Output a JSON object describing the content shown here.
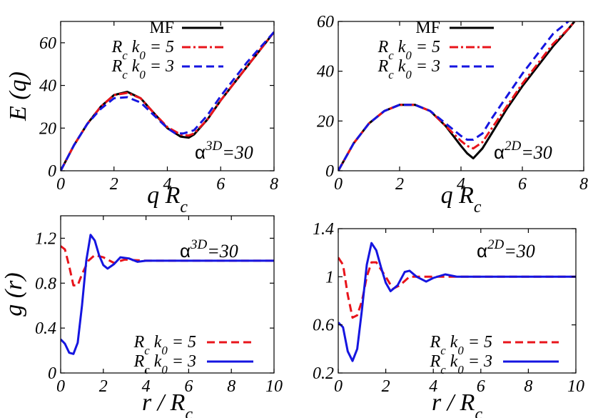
{
  "chart_data": [
    {
      "id": "p1",
      "type": "line",
      "panel": {
        "x0": 85,
        "y0": 30,
        "w": 299,
        "h": 209
      },
      "xlim": [
        0,
        8
      ],
      "ylim": [
        0,
        70
      ],
      "xticks": [
        0,
        2,
        4,
        6,
        8
      ],
      "yticks": [
        0,
        20,
        40,
        60
      ],
      "xlabel": "q R",
      "xlabel_sub": "c",
      "ylabel": "E (q)",
      "annotation": {
        "base": "α",
        "sup": "3D",
        "rest": "=30"
      },
      "legend_position": "top-center",
      "series": [
        {
          "name": "MF",
          "color": "#000000",
          "dash": "",
          "x": [
            0,
            0.5,
            1,
            1.5,
            2,
            2.5,
            3,
            3.5,
            4,
            4.5,
            4.8,
            5,
            5.5,
            6,
            6.5,
            7,
            7.5,
            8
          ],
          "y": [
            0,
            12,
            22,
            30,
            35.5,
            37,
            34,
            27,
            20,
            16,
            15.5,
            17,
            24,
            33,
            41,
            49,
            57,
            65
          ]
        },
        {
          "name": "R",
          "name_sub": "c",
          "name_rest": " k",
          "name_sub2": "0",
          "name_tail": " = 5",
          "color": "#e8141b",
          "dash": "12 4 3 4",
          "x": [
            0,
            0.5,
            1,
            1.5,
            2,
            2.5,
            3,
            3.5,
            4,
            4.5,
            4.8,
            5,
            5.5,
            6,
            6.5,
            7,
            7.5,
            8
          ],
          "y": [
            0,
            12,
            22,
            30,
            35.5,
            36.5,
            34,
            27,
            20.5,
            17,
            16.5,
            17.5,
            24,
            33,
            41,
            49,
            57,
            65
          ]
        },
        {
          "name": "R",
          "name_sub": "c",
          "name_rest": " k",
          "name_sub2": "0",
          "name_tail": " = 3",
          "color": "#1515e0",
          "dash": "11 6",
          "x": [
            0,
            0.5,
            1,
            1.5,
            2,
            2.5,
            3,
            3.5,
            4,
            4.3,
            4.6,
            5,
            5.5,
            6,
            6.5,
            7,
            7.5,
            8
          ],
          "y": [
            0,
            12,
            22,
            29,
            34,
            34.5,
            32,
            26,
            20,
            17.5,
            17.5,
            19,
            26,
            35,
            43,
            51,
            58,
            65
          ]
        }
      ]
    },
    {
      "id": "p2",
      "type": "line",
      "panel": {
        "x0": 474,
        "y0": 30,
        "w": 344,
        "h": 209
      },
      "xlim": [
        0,
        8
      ],
      "ylim": [
        0,
        60
      ],
      "xticks": [
        0,
        2,
        4,
        6,
        8
      ],
      "yticks": [
        0,
        20,
        40,
        60
      ],
      "xlabel": "q R",
      "xlabel_sub": "c",
      "ylabel": "",
      "annotation": {
        "base": "α",
        "sup": "2D",
        "rest": "=30"
      },
      "legend_position": "top-center",
      "series": [
        {
          "name": "MF",
          "color": "#000000",
          "dash": "",
          "x": [
            0,
            0.5,
            1,
            1.5,
            2,
            2.5,
            3,
            3.5,
            4,
            4.2,
            4.4,
            4.7,
            5,
            5.5,
            6,
            6.5,
            7,
            7.5,
            7.7
          ],
          "y": [
            0,
            11,
            19,
            24,
            26.5,
            26.5,
            24,
            18,
            10,
            7,
            5,
            9,
            15,
            25,
            34,
            42,
            50,
            57,
            60
          ]
        },
        {
          "name": "R",
          "name_sub": "c",
          "name_rest": " k",
          "name_sub2": "0",
          "name_tail": " = 5",
          "color": "#e8141b",
          "dash": "12 4 3 4",
          "x": [
            0,
            0.5,
            1,
            1.5,
            2,
            2.5,
            3,
            3.5,
            4,
            4.2,
            4.4,
            4.7,
            5,
            5.5,
            6,
            6.5,
            7,
            7.5,
            7.7
          ],
          "y": [
            0,
            11,
            19,
            24,
            26.5,
            26.5,
            24,
            18,
            12,
            10,
            9,
            11.5,
            17,
            26,
            35,
            43,
            51,
            57,
            60
          ]
        },
        {
          "name": "R",
          "name_sub": "c",
          "name_rest": " k",
          "name_sub2": "0",
          "name_tail": " = 3",
          "color": "#1515e0",
          "dash": "11 6",
          "x": [
            0,
            0.5,
            1,
            1.5,
            2,
            2.5,
            3,
            3.5,
            4,
            4.2,
            4.4,
            4.7,
            5,
            5.5,
            6,
            6.5,
            7,
            7.5
          ],
          "y": [
            0,
            11,
            19,
            24,
            26.5,
            26.5,
            24,
            19,
            14,
            12.5,
            12.5,
            15,
            21,
            30,
            39,
            47,
            55,
            60
          ]
        }
      ]
    },
    {
      "id": "p3",
      "type": "line",
      "panel": {
        "x0": 85,
        "y0": 302,
        "w": 299,
        "h": 220
      },
      "xlim": [
        0,
        10
      ],
      "ylim": [
        0,
        1.4
      ],
      "xticks": [
        0,
        2,
        4,
        6,
        8,
        10
      ],
      "yticks": [
        0,
        0.4,
        0.8,
        1.2
      ],
      "ytick_labels": [
        "0",
        "0.4",
        "0.8",
        "1.2"
      ],
      "xlabel": "r / R",
      "xlabel_sub": "c",
      "ylabel": "g (r)",
      "annotation": {
        "base": "α",
        "sup": "3D",
        "rest": "=30"
      },
      "legend_position": "bottom-right",
      "series": [
        {
          "name": "R",
          "name_sub": "c",
          "name_rest": " k",
          "name_sub2": "0",
          "name_tail": " = 5",
          "color": "#e8141b",
          "dash": "11 6",
          "x": [
            0,
            0.2,
            0.4,
            0.6,
            0.8,
            1,
            1.3,
            1.6,
            2,
            2.5,
            3,
            4,
            5,
            6,
            7,
            8,
            9,
            10
          ],
          "y": [
            1.13,
            1.1,
            0.95,
            0.78,
            0.78,
            0.88,
            1.0,
            1.05,
            1.03,
            0.98,
            1.01,
            1.0,
            1.0,
            1.0,
            1.0,
            1.0,
            1.0,
            1.0
          ]
        },
        {
          "name": "R",
          "name_sub": "c",
          "name_rest": " k",
          "name_sub2": "0",
          "name_tail": " = 3",
          "color": "#1515e0",
          "dash": "",
          "x": [
            0,
            0.2,
            0.4,
            0.6,
            0.8,
            1,
            1.2,
            1.4,
            1.6,
            1.8,
            2,
            2.2,
            2.5,
            2.8,
            3.2,
            3.6,
            4,
            5,
            6,
            7,
            8,
            9,
            10
          ],
          "y": [
            0.3,
            0.26,
            0.18,
            0.17,
            0.27,
            0.6,
            1.0,
            1.23,
            1.18,
            1.05,
            0.96,
            0.93,
            0.97,
            1.03,
            1.02,
            0.99,
            1.0,
            1.0,
            1.0,
            1.0,
            1.0,
            1.0,
            1.0
          ]
        }
      ]
    },
    {
      "id": "p4",
      "type": "line",
      "panel": {
        "x0": 474,
        "y0": 320,
        "w": 333,
        "h": 202
      },
      "xlim": [
        0,
        10
      ],
      "ylim": [
        0.2,
        1.4
      ],
      "xticks": [
        0,
        2,
        4,
        6,
        8,
        10
      ],
      "yticks": [
        0.2,
        0.6,
        1,
        1.4
      ],
      "ytick_labels": [
        "0.2",
        "0.6",
        "1",
        "1.4"
      ],
      "xlabel": "r / R",
      "xlabel_sub": "c",
      "ylabel": "",
      "annotation": {
        "base": "α",
        "sup": "2D",
        "rest": "=30"
      },
      "legend_position": "bottom-right",
      "series": [
        {
          "name": "R",
          "name_sub": "c",
          "name_rest": " k",
          "name_sub2": "0",
          "name_tail": " = 5",
          "color": "#e8141b",
          "dash": "11 6",
          "x": [
            0,
            0.2,
            0.4,
            0.6,
            0.8,
            1,
            1.2,
            1.4,
            1.6,
            2,
            2.3,
            2.6,
            3,
            4,
            5,
            6,
            7,
            8,
            9,
            10
          ],
          "y": [
            1.16,
            1.1,
            0.85,
            0.66,
            0.68,
            0.8,
            1.0,
            1.12,
            1.12,
            1.0,
            0.9,
            0.93,
            1.0,
            1.0,
            1.0,
            1.0,
            1.0,
            1.0,
            1.0,
            1.0
          ]
        },
        {
          "name": "R",
          "name_sub": "c",
          "name_rest": " k",
          "name_sub2": "0",
          "name_tail": " = 3",
          "color": "#1515e0",
          "dash": "",
          "x": [
            0,
            0.2,
            0.4,
            0.6,
            0.8,
            1,
            1.2,
            1.4,
            1.6,
            1.8,
            2,
            2.2,
            2.5,
            2.8,
            3,
            3.3,
            3.7,
            4,
            4.5,
            5,
            6,
            7,
            8,
            9,
            10
          ],
          "y": [
            0.62,
            0.58,
            0.38,
            0.3,
            0.4,
            0.73,
            1.1,
            1.28,
            1.22,
            1.08,
            0.95,
            0.88,
            0.93,
            1.04,
            1.05,
            1.0,
            0.96,
            0.99,
            1.02,
            1.0,
            1.0,
            1.0,
            1.0,
            1.0,
            1.0
          ]
        }
      ]
    }
  ]
}
